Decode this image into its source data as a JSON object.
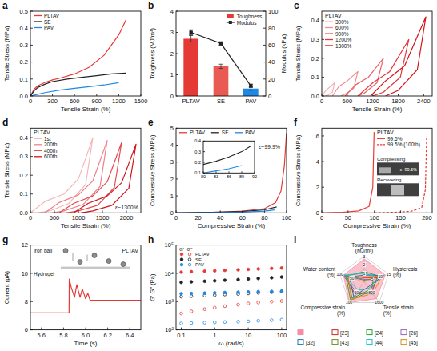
{
  "chart_data": [
    {
      "panel_label": "a",
      "type": "line",
      "x_label": "Tensile Strain (%)",
      "y_label": "Tensile Stress (MPa)",
      "xlim": [
        0,
        1500
      ],
      "xticks": [
        0,
        300,
        600,
        900,
        1200,
        1500
      ],
      "ylim": [
        0,
        0.5
      ],
      "yticks": [
        {
          "value": 0,
          "label": "0.0"
        },
        0.1,
        0.2,
        0.3,
        0.4,
        0.5
      ],
      "legend": "upper left",
      "series": [
        {
          "name": "PLTAV",
          "color": "#e53935",
          "x": [
            0,
            50,
            100,
            200,
            300,
            400,
            600,
            800,
            1000,
            1200,
            1300
          ],
          "values": [
            0,
            0.04,
            0.06,
            0.08,
            0.095,
            0.105,
            0.13,
            0.17,
            0.24,
            0.36,
            0.45
          ]
        },
        {
          "name": "SE",
          "color": "#222222",
          "x": [
            0,
            50,
            100,
            200,
            300,
            500,
            700,
            900,
            1100,
            1300
          ],
          "values": [
            0,
            0.03,
            0.05,
            0.07,
            0.085,
            0.1,
            0.11,
            0.12,
            0.13,
            0.135
          ]
        },
        {
          "name": "PAV",
          "color": "#1e88e5",
          "x": [
            0,
            100,
            200,
            400,
            600,
            800,
            1000,
            1200
          ],
          "values": [
            0,
            0.01,
            0.02,
            0.035,
            0.045,
            0.055,
            0.065,
            0.078
          ]
        }
      ]
    },
    {
      "panel_label": "b",
      "type": "bar",
      "categories": [
        "PLTAV",
        "SE",
        "PAV"
      ],
      "y_label": "Toughness (MJ/m³)",
      "y2_label": "Modulus (kPa)",
      "ylim": [
        0,
        4
      ],
      "yticks": [
        0,
        1,
        2,
        3,
        4
      ],
      "y2lim": [
        0,
        100
      ],
      "y2ticks": [
        0,
        20,
        40,
        60,
        80,
        100
      ],
      "legend": "upper right",
      "series": [
        {
          "name": "Toughness",
          "type": "bar",
          "colors": [
            "#e53935",
            "#ea5a55",
            "#1e88e5"
          ],
          "values": [
            2.7,
            1.4,
            0.35
          ],
          "errors": [
            0.15,
            0.1,
            0.08
          ]
        },
        {
          "name": "Modulus",
          "type": "line",
          "color": "#222222",
          "marker": "square",
          "axis": "y2",
          "values": [
            75,
            62,
            12
          ],
          "errors": [
            3,
            2,
            2
          ]
        }
      ]
    },
    {
      "panel_label": "c",
      "type": "line",
      "x_label": "Tensile Strain (%)",
      "y_label": "Tensile Stress (MPa)",
      "xlim": [
        0,
        2600
      ],
      "xticks": [
        0,
        600,
        1200,
        1800,
        2400
      ],
      "ylim": [
        0,
        0.45
      ],
      "yticks": [
        {
          "value": 0,
          "label": "0.0"
        },
        0.1,
        0.2,
        0.3,
        0.4
      ],
      "legend": "upper left",
      "legend_title": "PLTAV",
      "series": [
        {
          "name": "300%",
          "color": "#f4b6b8",
          "x": [
            0,
            100,
            200,
            300,
            250,
            150,
            80
          ],
          "values": [
            0,
            0.03,
            0.05,
            0.07,
            0.02,
            0.005,
            0
          ]
        },
        {
          "name": "600%",
          "color": "#f08d91",
          "x": [
            250,
            400,
            600,
            850,
            750,
            550,
            450
          ],
          "values": [
            0,
            0.05,
            0.08,
            0.13,
            0.04,
            0.01,
            0
          ]
        },
        {
          "name": "900%",
          "color": "#ea6167",
          "x": [
            550,
            800,
            1100,
            1450,
            1300,
            1000,
            850
          ],
          "values": [
            0,
            0.06,
            0.1,
            0.2,
            0.07,
            0.015,
            0
          ]
        },
        {
          "name": "1200%",
          "color": "#e3373e",
          "x": [
            850,
            1200,
            1600,
            2050,
            1850,
            1450,
            1200
          ],
          "values": [
            0,
            0.07,
            0.13,
            0.3,
            0.1,
            0.02,
            0
          ]
        },
        {
          "name": "1300%",
          "color": "#d0141c",
          "x": [
            1150,
            1500,
            1950,
            2450,
            2250,
            1800,
            1500
          ],
          "values": [
            0,
            0.08,
            0.16,
            0.42,
            0.14,
            0.03,
            0
          ]
        }
      ]
    },
    {
      "panel_label": "d",
      "type": "line",
      "x_label": "Tensile Strain (%)",
      "y_label": "Tensile Stress (MPa)",
      "xlim": [
        0,
        2300
      ],
      "xticks": [
        0,
        500,
        1000,
        1500,
        2000
      ],
      "ylim": [
        0,
        0.45
      ],
      "yticks": [
        {
          "value": 0,
          "label": "0.0"
        },
        0.1,
        0.2,
        0.3,
        0.4
      ],
      "legend": "upper left",
      "legend_title": "PLTAV",
      "annotations": [
        "ε~1300%"
      ],
      "series": [
        {
          "name": "1st",
          "color": "#f4b6b8",
          "x": [
            0,
            300,
            700,
            1000,
            1300,
            1150,
            800,
            400,
            150
          ],
          "values": [
            0,
            0.06,
            0.1,
            0.18,
            0.4,
            0.15,
            0.05,
            0.01,
            0
          ]
        },
        {
          "name": "200th",
          "color": "#ee8288",
          "x": [
            300,
            600,
            1000,
            1300,
            1600,
            1450,
            1100,
            700,
            450
          ],
          "values": [
            0,
            0.055,
            0.095,
            0.17,
            0.385,
            0.14,
            0.045,
            0.01,
            0
          ]
        },
        {
          "name": "400th",
          "color": "#e54a51",
          "x": [
            600,
            900,
            1300,
            1600,
            1900,
            1750,
            1400,
            1000,
            750
          ],
          "values": [
            0,
            0.05,
            0.09,
            0.165,
            0.375,
            0.135,
            0.04,
            0.01,
            0
          ]
        },
        {
          "name": "600th",
          "color": "#d0141c",
          "x": [
            900,
            1200,
            1600,
            1900,
            2200,
            2050,
            1700,
            1300,
            1050
          ],
          "values": [
            0,
            0.05,
            0.09,
            0.16,
            0.365,
            0.13,
            0.04,
            0.01,
            0
          ]
        }
      ]
    },
    {
      "panel_label": "e",
      "type": "line",
      "x_label": "Compressive Strain (%)",
      "y_label": "Compressive Stress (MPa)",
      "xlim": [
        0,
        100
      ],
      "xticks": [
        0,
        20,
        40,
        60,
        80,
        100
      ],
      "ylim": [
        0,
        5
      ],
      "yticks": [
        0,
        1,
        2,
        3,
        4,
        5
      ],
      "legend": "upper left",
      "annotations": [
        "ε~99.9%"
      ],
      "series": [
        {
          "name": "PLTAV",
          "color": "#e53935",
          "x": [
            0,
            20,
            40,
            60,
            80,
            90,
            95,
            98,
            99.9
          ],
          "values": [
            0,
            0.02,
            0.05,
            0.1,
            0.25,
            0.6,
            1.3,
            2.8,
            4.7
          ]
        },
        {
          "name": "SE",
          "color": "#222222",
          "x": [
            0,
            20,
            40,
            60,
            80,
            91
          ],
          "values": [
            0,
            0.02,
            0.04,
            0.08,
            0.18,
            0.35
          ]
        },
        {
          "name": "PAV",
          "color": "#1e88e5",
          "x": [
            0,
            20,
            40,
            60,
            80,
            89
          ],
          "values": [
            0,
            0.01,
            0.02,
            0.04,
            0.1,
            0.17
          ]
        }
      ],
      "inset": {
        "xlim": [
          80,
          92
        ],
        "xticks": [
          80,
          83,
          86,
          89,
          92
        ],
        "ylim": [
          0.1,
          0.4
        ],
        "yticks": [
          0.1,
          0.2,
          0.3,
          0.4
        ],
        "series": [
          {
            "color": "#222222",
            "x": [
              80,
              83,
              86,
              89,
              91
            ],
            "values": [
              0.18,
              0.21,
              0.25,
              0.3,
              0.35
            ]
          },
          {
            "color": "#1e88e5",
            "x": [
              80,
              83,
              86,
              89
            ],
            "values": [
              0.1,
              0.12,
              0.14,
              0.17
            ]
          }
        ]
      }
    },
    {
      "panel_label": "f",
      "type": "line",
      "x_label": "Compressive Strain (%)",
      "y_label": "Compressive Stress (MPa)",
      "xlim": [
        0,
        210
      ],
      "xticks": [
        0,
        50,
        100,
        150,
        200
      ],
      "ylim": [
        0,
        6.6
      ],
      "yticks": [
        0,
        2,
        4,
        6
      ],
      "legend": "upper center",
      "legend_title": "PLTAV",
      "annotations": [
        "Compressing",
        "Recovering",
        "ε~99.5%"
      ],
      "series": [
        {
          "name": "99.5%",
          "color": "#e53935",
          "line_style": "solid",
          "x": [
            0,
            40,
            70,
            90,
            97,
            99.5
          ],
          "values": [
            0,
            0.05,
            0.15,
            0.5,
            2,
            6.3
          ]
        },
        {
          "name": "99.5% (100th)",
          "color": "#e53935",
          "line_style": "dashed",
          "x": [
            100,
            140,
            170,
            190,
            197,
            199.5
          ],
          "values": [
            0,
            0.05,
            0.12,
            0.4,
            1.8,
            6
          ]
        }
      ]
    },
    {
      "panel_label": "g",
      "type": "line",
      "x_label": "Time (s)",
      "y_label": "Current (μA)",
      "xlim": [
        5.5,
        6.5
      ],
      "xticks": [
        5.6,
        5.8,
        {
          "value": 6,
          "label": "6.0"
        },
        6.2,
        6.4
      ],
      "ylim": [
        6,
        12
      ],
      "yticks": [
        6,
        8,
        10,
        12
      ],
      "annotations": [
        "Iron ball",
        "Hydrogel",
        "PLTAV"
      ],
      "series": [
        {
          "color": "#e53935",
          "x": [
            5.5,
            5.85,
            5.852,
            5.87,
            5.9,
            5.92,
            5.95,
            5.97,
            6,
            6.02,
            6.04,
            6.06,
            6.5
          ],
          "values": [
            7.2,
            7.2,
            9.6,
            9,
            8.3,
            9.2,
            8.3,
            8.9,
            8.2,
            8.6,
            8.1,
            8.1,
            8.1
          ]
        }
      ]
    },
    {
      "panel_label": "h",
      "type": "scatter",
      "log": true,
      "marker": "circle",
      "x_label": "ω (rad/s)",
      "y_label": "G' G'' (Pa)",
      "xlim": [
        0.07,
        140
      ],
      "xticks": [
        0.1,
        1,
        10,
        100
      ],
      "ylim": [
        100,
        100000
      ],
      "yticks": [
        {
          "value": 100,
          "label": "10²"
        },
        {
          "value": 1000,
          "label": "10³"
        },
        {
          "value": 10000,
          "label": "10⁴"
        },
        {
          "value": 100000,
          "label": "10⁵"
        }
      ],
      "legend": "upper left",
      "legend_columns": [
        "G'",
        "G''"
      ],
      "x": [
        0.1,
        0.2,
        0.5,
        1,
        2,
        5,
        10,
        20,
        50,
        100
      ],
      "series": [
        {
          "name": "PLTAV",
          "color": "#e53935",
          "storage": [
            11000,
            11400,
            11900,
            12300,
            12800,
            13300,
            13800,
            14300,
            14900,
            15500
          ],
          "loss": [
            380,
            450,
            540,
            610,
            690,
            780,
            860,
            930,
            1000,
            1050
          ]
        },
        {
          "name": "SE",
          "color": "#222222",
          "storage": [
            4800,
            5000,
            5250,
            5450,
            5700,
            6000,
            6300,
            6600,
            7000,
            7400
          ],
          "loss": [
            1500,
            1560,
            1630,
            1700,
            1780,
            1860,
            1950,
            2050,
            2150,
            2250
          ]
        },
        {
          "name": "PAV",
          "color": "#1e88e5",
          "storage": [
            1900,
            1950,
            2000,
            2050,
            2100,
            2150,
            2200,
            2250,
            2300,
            2350
          ],
          "loss": [
            170,
            175,
            180,
            185,
            190,
            195,
            200,
            210,
            220,
            230
          ]
        }
      ]
    },
    {
      "panel_label": "i",
      "type": "radar",
      "legend": "bottom",
      "axes": [
        {
          "label": "Toughness (MJ/m³)",
          "range": [
            0,
            3
          ],
          "ticks": [
            1,
            2,
            3
          ]
        },
        {
          "label": "Hysteresis (%)",
          "range": [
            0,
            15
          ],
          "ticks": [
            5,
            10,
            15
          ]
        },
        {
          "label": "Tensile strain (%)",
          "range": [
            0,
            1600
          ],
          "ticks": [
            800,
            1600
          ]
        },
        {
          "label": "Compressive strain (%)",
          "range": [
            0,
            100
          ],
          "ticks": [
            50,
            100
          ]
        },
        {
          "label": "Water content (%)",
          "range": [
            0,
            100
          ],
          "ticks": [
            50,
            100
          ]
        }
      ],
      "series": [
        {
          "type": "area",
          "color": "#f48fa3",
          "values": [
            2.7,
            13,
            1300,
            99.9,
            85
          ]
        },
        {
          "name": "[23]",
          "type": "line",
          "color": "#d62728",
          "values": [
            0.5,
            8,
            800,
            60,
            80
          ]
        },
        {
          "name": "[24]",
          "type": "line",
          "color": "#2ca02c",
          "values": [
            1.2,
            10,
            600,
            80,
            70
          ]
        },
        {
          "name": "[26]",
          "type": "line",
          "color": "#9467bd",
          "values": [
            0.3,
            5,
            1000,
            50,
            90
          ]
        },
        {
          "name": "[32]",
          "type": "line",
          "color": "#1f77b4",
          "values": [
            0.8,
            12,
            400,
            70,
            60
          ]
        },
        {
          "name": "[43]",
          "type": "line",
          "color": "#6b8e23",
          "values": [
            0.2,
            6,
            700,
            90,
            75
          ]
        },
        {
          "name": "[44]",
          "type": "line",
          "color": "#17becf",
          "values": [
            1,
            9,
            500,
            40,
            85
          ]
        },
        {
          "name": "[45]",
          "type": "line",
          "color": "#e08a1e",
          "values": [
            0.6,
            11,
            900,
            85,
            65
          ]
        }
      ]
    }
  ]
}
